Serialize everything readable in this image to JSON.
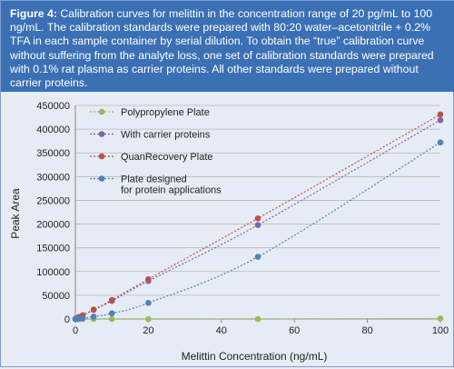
{
  "caption": {
    "label": "Figure 4:",
    "text": "Calibration curves for melittin in the concentration range of 20 pg/mL to 100 ng/mL. The calibration standards were prepared with 80:20 water–acetonitrile + 0.2% TFA in each sample container by serial dilution. To obtain the “true” calibration curve without suffering from the analyte loss, one set of calibration standards were prepared with 0.1% rat plasma as carrier proteins. All other standards were prepared without carrier proteins."
  },
  "chart_data": {
    "type": "scatter",
    "xlabel": "Melittin Concentration (ng/mL)",
    "ylabel": "Peak Area",
    "xlim": [
      0,
      100
    ],
    "ylim": [
      0,
      450000
    ],
    "x_ticks": [
      0,
      20,
      40,
      60,
      80,
      100
    ],
    "y_ticks": [
      0,
      50000,
      100000,
      150000,
      200000,
      250000,
      300000,
      350000,
      400000,
      450000
    ],
    "x_tick_labels": [
      "0",
      "20",
      "40",
      "60",
      "80",
      "100"
    ],
    "y_tick_labels": [
      "0",
      "50000",
      "100000",
      "150000",
      "200000",
      "250000",
      "300000",
      "350000",
      "400000",
      "450000"
    ],
    "grid": "horizontal",
    "legend_position": "top-left",
    "series": [
      {
        "name": "Polypropylene Plate",
        "color": "#9bbb59",
        "x": [
          0.02,
          0.05,
          0.1,
          0.2,
          0.5,
          1,
          2,
          5,
          10,
          20,
          50,
          100
        ],
        "y": [
          0,
          0,
          0,
          0,
          0,
          0,
          0,
          0,
          0,
          0,
          0,
          1000
        ]
      },
      {
        "name": "With carrier proteins",
        "color": "#8064a2",
        "x": [
          0.02,
          0.05,
          0.1,
          0.2,
          0.5,
          1,
          2,
          5,
          10,
          20,
          50,
          100
        ],
        "y": [
          0,
          0,
          500,
          1000,
          2000,
          4000,
          7500,
          19000,
          38000,
          80000,
          198000,
          419000
        ]
      },
      {
        "name": "QuanRecovery Plate",
        "color": "#c0504d",
        "x": [
          0.02,
          0.05,
          0.1,
          0.2,
          0.5,
          1,
          2,
          5,
          10,
          20,
          50,
          100
        ],
        "y": [
          0,
          0,
          500,
          1000,
          2000,
          4500,
          8000,
          20000,
          40000,
          84000,
          212000,
          431000
        ]
      },
      {
        "name": "Plate designed\nfor protein applications",
        "color": "#4f81bd",
        "x": [
          0.02,
          0.05,
          0.1,
          0.2,
          0.5,
          1,
          2,
          5,
          10,
          20,
          50,
          100
        ],
        "y": [
          0,
          0,
          0,
          0,
          0,
          500,
          1500,
          5000,
          12000,
          34000,
          131000,
          372000
        ]
      }
    ]
  }
}
